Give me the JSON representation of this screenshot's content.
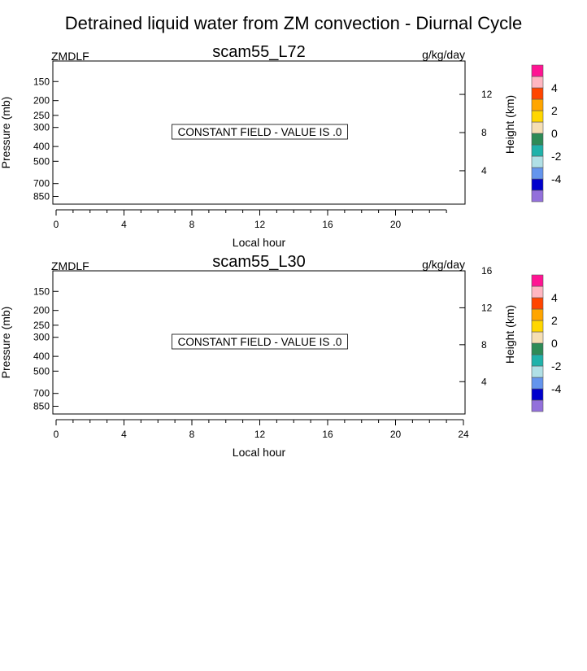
{
  "figure": {
    "title": "Detrained liquid water from ZM convection - Diurnal Cycle"
  },
  "colorbar": {
    "colors": [
      "#9370db",
      "#0000cd",
      "#6495ed",
      "#b0e0e6",
      "#20b2aa",
      "#2e8b57",
      "#f5deb3",
      "#ffd700",
      "#ffa500",
      "#ff4500",
      "#ffb6c1",
      "#ff1493"
    ],
    "labels": [
      "-4",
      "-2",
      "0",
      "2",
      "4"
    ]
  },
  "chart_data": [
    {
      "type": "heatmap",
      "title": "scam55_L72",
      "left_label": "ZMDLF",
      "units": "g/kg/day",
      "xlabel": "Local hour",
      "ylabel": "Pressure (mb)",
      "y2label": "Height (km)",
      "xlim": [
        0,
        24
      ],
      "x_ticks": [
        0,
        4,
        8,
        12,
        16,
        20
      ],
      "p_ticks": [
        150,
        200,
        250,
        300,
        400,
        500,
        700,
        850
      ],
      "p_range": [
        110,
        955
      ],
      "h_ticks": [
        4,
        8,
        12
      ],
      "h_range": [
        0.5,
        15.5
      ],
      "message": "CONSTANT FIELD - VALUE IS .0"
    },
    {
      "type": "heatmap",
      "title": "scam55_L30",
      "left_label": "ZMDLF",
      "units": "g/kg/day",
      "xlabel": "Local hour",
      "ylabel": "Pressure (mb)",
      "y2label": "Height (km)",
      "xlim": [
        0,
        24
      ],
      "x_ticks": [
        0,
        4,
        8,
        12,
        16,
        20,
        24
      ],
      "p_ticks": [
        150,
        200,
        250,
        300,
        400,
        500,
        700,
        850
      ],
      "p_range": [
        110,
        955
      ],
      "h_ticks": [
        4,
        8,
        12,
        16
      ],
      "h_range": [
        0.5,
        16
      ],
      "message": "CONSTANT FIELD - VALUE IS .0"
    }
  ]
}
